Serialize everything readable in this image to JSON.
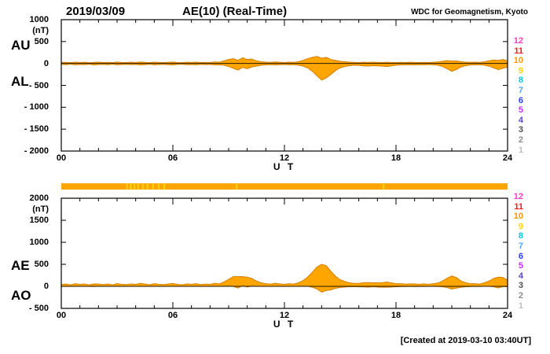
{
  "header": {
    "date": "2019/03/09",
    "title": "AE(10) (Real-Time)",
    "credit": "WDC for Geomagnetism, Kyoto"
  },
  "footer": {
    "created_note": "[Created at 2019-03-10 03:40UT]"
  },
  "axis": {
    "x_label": "U T",
    "x_tick_labels": [
      "00",
      "06",
      "12",
      "18",
      "24"
    ],
    "unit_label": "(nT)"
  },
  "station_legend": {
    "values": [
      "12",
      "11",
      "10",
      "9",
      "8",
      "7",
      "6",
      "5",
      "4",
      "3",
      "2",
      "1"
    ],
    "colors": [
      "#ff3dbe",
      "#ff1a1a",
      "#ff9500",
      "#ffd400",
      "#00c8d7",
      "#4fa8ff",
      "#2b3cff",
      "#c92bff",
      "#5a49c9",
      "#4d4d4d",
      "#8c8c8c",
      "#bfbfbf"
    ]
  },
  "quality_bar": {
    "base_color": "#FFA500",
    "streak_color": "#FFE000",
    "streak_hours": [
      3.5,
      3.7,
      3.9,
      4.1,
      4.35,
      4.6,
      4.9,
      5.2,
      5.5,
      9.4,
      17.3
    ]
  },
  "colors": {
    "trace_fill": "#FFA500",
    "trace_edge": "#D47F00",
    "axis": "#000000"
  },
  "chart_data": [
    {
      "type": "area",
      "panel": "AU-AL",
      "left_labels": [
        "AU",
        "AL"
      ],
      "x": {
        "start": 0,
        "step": 0.25,
        "end": 24,
        "unit": "hour"
      },
      "xlabel": "U T",
      "ylabel": "(nT)",
      "ylim": [
        -2000,
        1000
      ],
      "yticks": [
        1000,
        500,
        0,
        -500,
        -1000,
        -1500,
        -2000
      ],
      "ytick_labels": [
        "1000",
        "500",
        "0",
        "- 500",
        "- 1000",
        "- 1500",
        "- 2000"
      ],
      "xticks": [
        0,
        6,
        12,
        18,
        24
      ],
      "series": [
        {
          "name": "AU",
          "values": [
            20,
            25,
            18,
            30,
            22,
            28,
            16,
            24,
            30,
            20,
            26,
            18,
            32,
            24,
            20,
            28,
            22,
            34,
            26,
            18,
            30,
            24,
            20,
            26,
            32,
            22,
            18,
            28,
            24,
            30,
            20,
            26,
            22,
            34,
            28,
            60,
            90,
            110,
            70,
            130,
            90,
            100,
            60,
            40,
            30,
            25,
            35,
            28,
            22,
            30,
            26,
            40,
            70,
            110,
            140,
            160,
            120,
            140,
            90,
            70,
            50,
            40,
            30,
            26,
            22,
            28,
            24,
            30,
            26,
            22,
            28,
            24,
            20,
            26,
            22,
            28,
            24,
            20,
            26,
            22,
            28,
            35,
            50,
            65,
            55,
            60,
            40,
            30,
            26,
            30,
            24,
            40,
            60,
            80,
            70,
            90,
            60
          ]
        },
        {
          "name": "AL",
          "values": [
            -20,
            -28,
            -16,
            -30,
            -22,
            -26,
            -18,
            -32,
            -24,
            -20,
            -28,
            -16,
            -30,
            -24,
            -20,
            -26,
            -22,
            -34,
            -26,
            -18,
            -30,
            -24,
            -20,
            -28,
            -32,
            -22,
            -18,
            -28,
            -24,
            -30,
            -20,
            -26,
            -22,
            -34,
            -28,
            -40,
            -70,
            -110,
            -150,
            -90,
            -120,
            -80,
            -60,
            -40,
            -30,
            -26,
            -34,
            -28,
            -24,
            -30,
            -26,
            -40,
            -60,
            -100,
            -180,
            -280,
            -380,
            -330,
            -250,
            -160,
            -100,
            -70,
            -50,
            -40,
            -45,
            -55,
            -60,
            -50,
            -55,
            -60,
            -70,
            -55,
            -40,
            -35,
            -30,
            -28,
            -32,
            -26,
            -30,
            -24,
            -30,
            -40,
            -70,
            -120,
            -180,
            -140,
            -80,
            -50,
            -35,
            -30,
            -28,
            -40,
            -60,
            -100,
            -140,
            -110,
            -80
          ]
        }
      ]
    },
    {
      "type": "area",
      "panel": "AE-AO",
      "left_labels": [
        "AE",
        "AO"
      ],
      "x": {
        "start": 0,
        "step": 0.25,
        "end": 24,
        "unit": "hour"
      },
      "xlabel": "U T",
      "ylabel": "(nT)",
      "ylim": [
        -500,
        2000
      ],
      "yticks": [
        2000,
        1500,
        1000,
        500,
        0,
        -500
      ],
      "ytick_labels": [
        "2000",
        "1500",
        "1000",
        "500",
        "0",
        "- 500"
      ],
      "xticks": [
        0,
        6,
        12,
        18,
        24
      ],
      "series": [
        {
          "name": "AE",
          "values": [
            40,
            53,
            34,
            60,
            44,
            54,
            34,
            56,
            54,
            40,
            54,
            34,
            62,
            48,
            40,
            54,
            44,
            68,
            52,
            36,
            60,
            48,
            40,
            54,
            64,
            44,
            36,
            56,
            48,
            60,
            40,
            52,
            44,
            68,
            56,
            100,
            160,
            220,
            220,
            220,
            210,
            180,
            120,
            80,
            60,
            51,
            69,
            56,
            46,
            60,
            52,
            80,
            130,
            210,
            320,
            440,
            500,
            470,
            340,
            230,
            150,
            110,
            80,
            66,
            67,
            83,
            84,
            80,
            81,
            82,
            98,
            79,
            60,
            61,
            52,
            56,
            56,
            46,
            56,
            46,
            58,
            75,
            120,
            185,
            235,
            200,
            120,
            80,
            61,
            60,
            52,
            80,
            120,
            180,
            210,
            200,
            140
          ]
        },
        {
          "name": "AO",
          "values": [
            0,
            -2,
            1,
            0,
            0,
            1,
            -1,
            -4,
            3,
            0,
            -1,
            1,
            1,
            0,
            0,
            1,
            0,
            0,
            0,
            0,
            0,
            0,
            0,
            -1,
            0,
            0,
            0,
            0,
            0,
            0,
            0,
            0,
            0,
            0,
            0,
            10,
            10,
            0,
            -40,
            20,
            -15,
            10,
            0,
            0,
            0,
            -1,
            1,
            0,
            -1,
            0,
            0,
            0,
            5,
            5,
            -20,
            -60,
            -130,
            -95,
            -80,
            -45,
            -25,
            -15,
            -10,
            -7,
            -12,
            -14,
            -18,
            -10,
            -15,
            -19,
            -21,
            -16,
            -10,
            -5,
            -4,
            0,
            -4,
            -3,
            -2,
            -1,
            -1,
            -3,
            -10,
            -28,
            -63,
            -40,
            -20,
            -10,
            -5,
            0,
            -2,
            0,
            0,
            -10,
            -35,
            -10,
            -10
          ]
        }
      ]
    }
  ]
}
